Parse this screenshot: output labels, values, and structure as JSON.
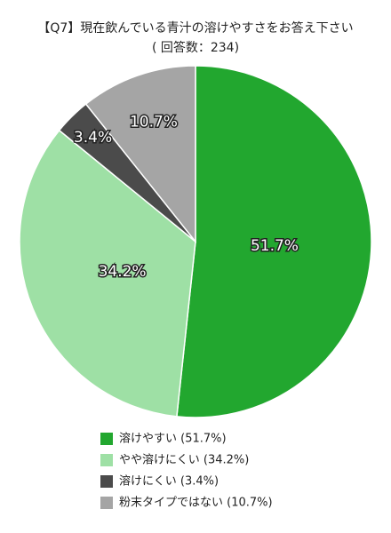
{
  "chart_data": {
    "type": "pie",
    "title": "【Q7】現在飲んでいる青汁の溶けやすさをお答え下さい",
    "subtitle": "( 回答数：234)",
    "categories": [
      "溶けやすい (51.7%)",
      "やや溶けにくい (34.2%)",
      "溶けにくい (3.4%)",
      "粉末タイプではない (10.7%)"
    ],
    "values": [
      51.7,
      34.2,
      3.4,
      10.7
    ],
    "value_labels": [
      "51.7%",
      "34.2%",
      "3.4%",
      "10.7%"
    ],
    "colors": [
      "#22a72f",
      "#9ee0a5",
      "#4b4b4b",
      "#a5a5a5"
    ]
  }
}
